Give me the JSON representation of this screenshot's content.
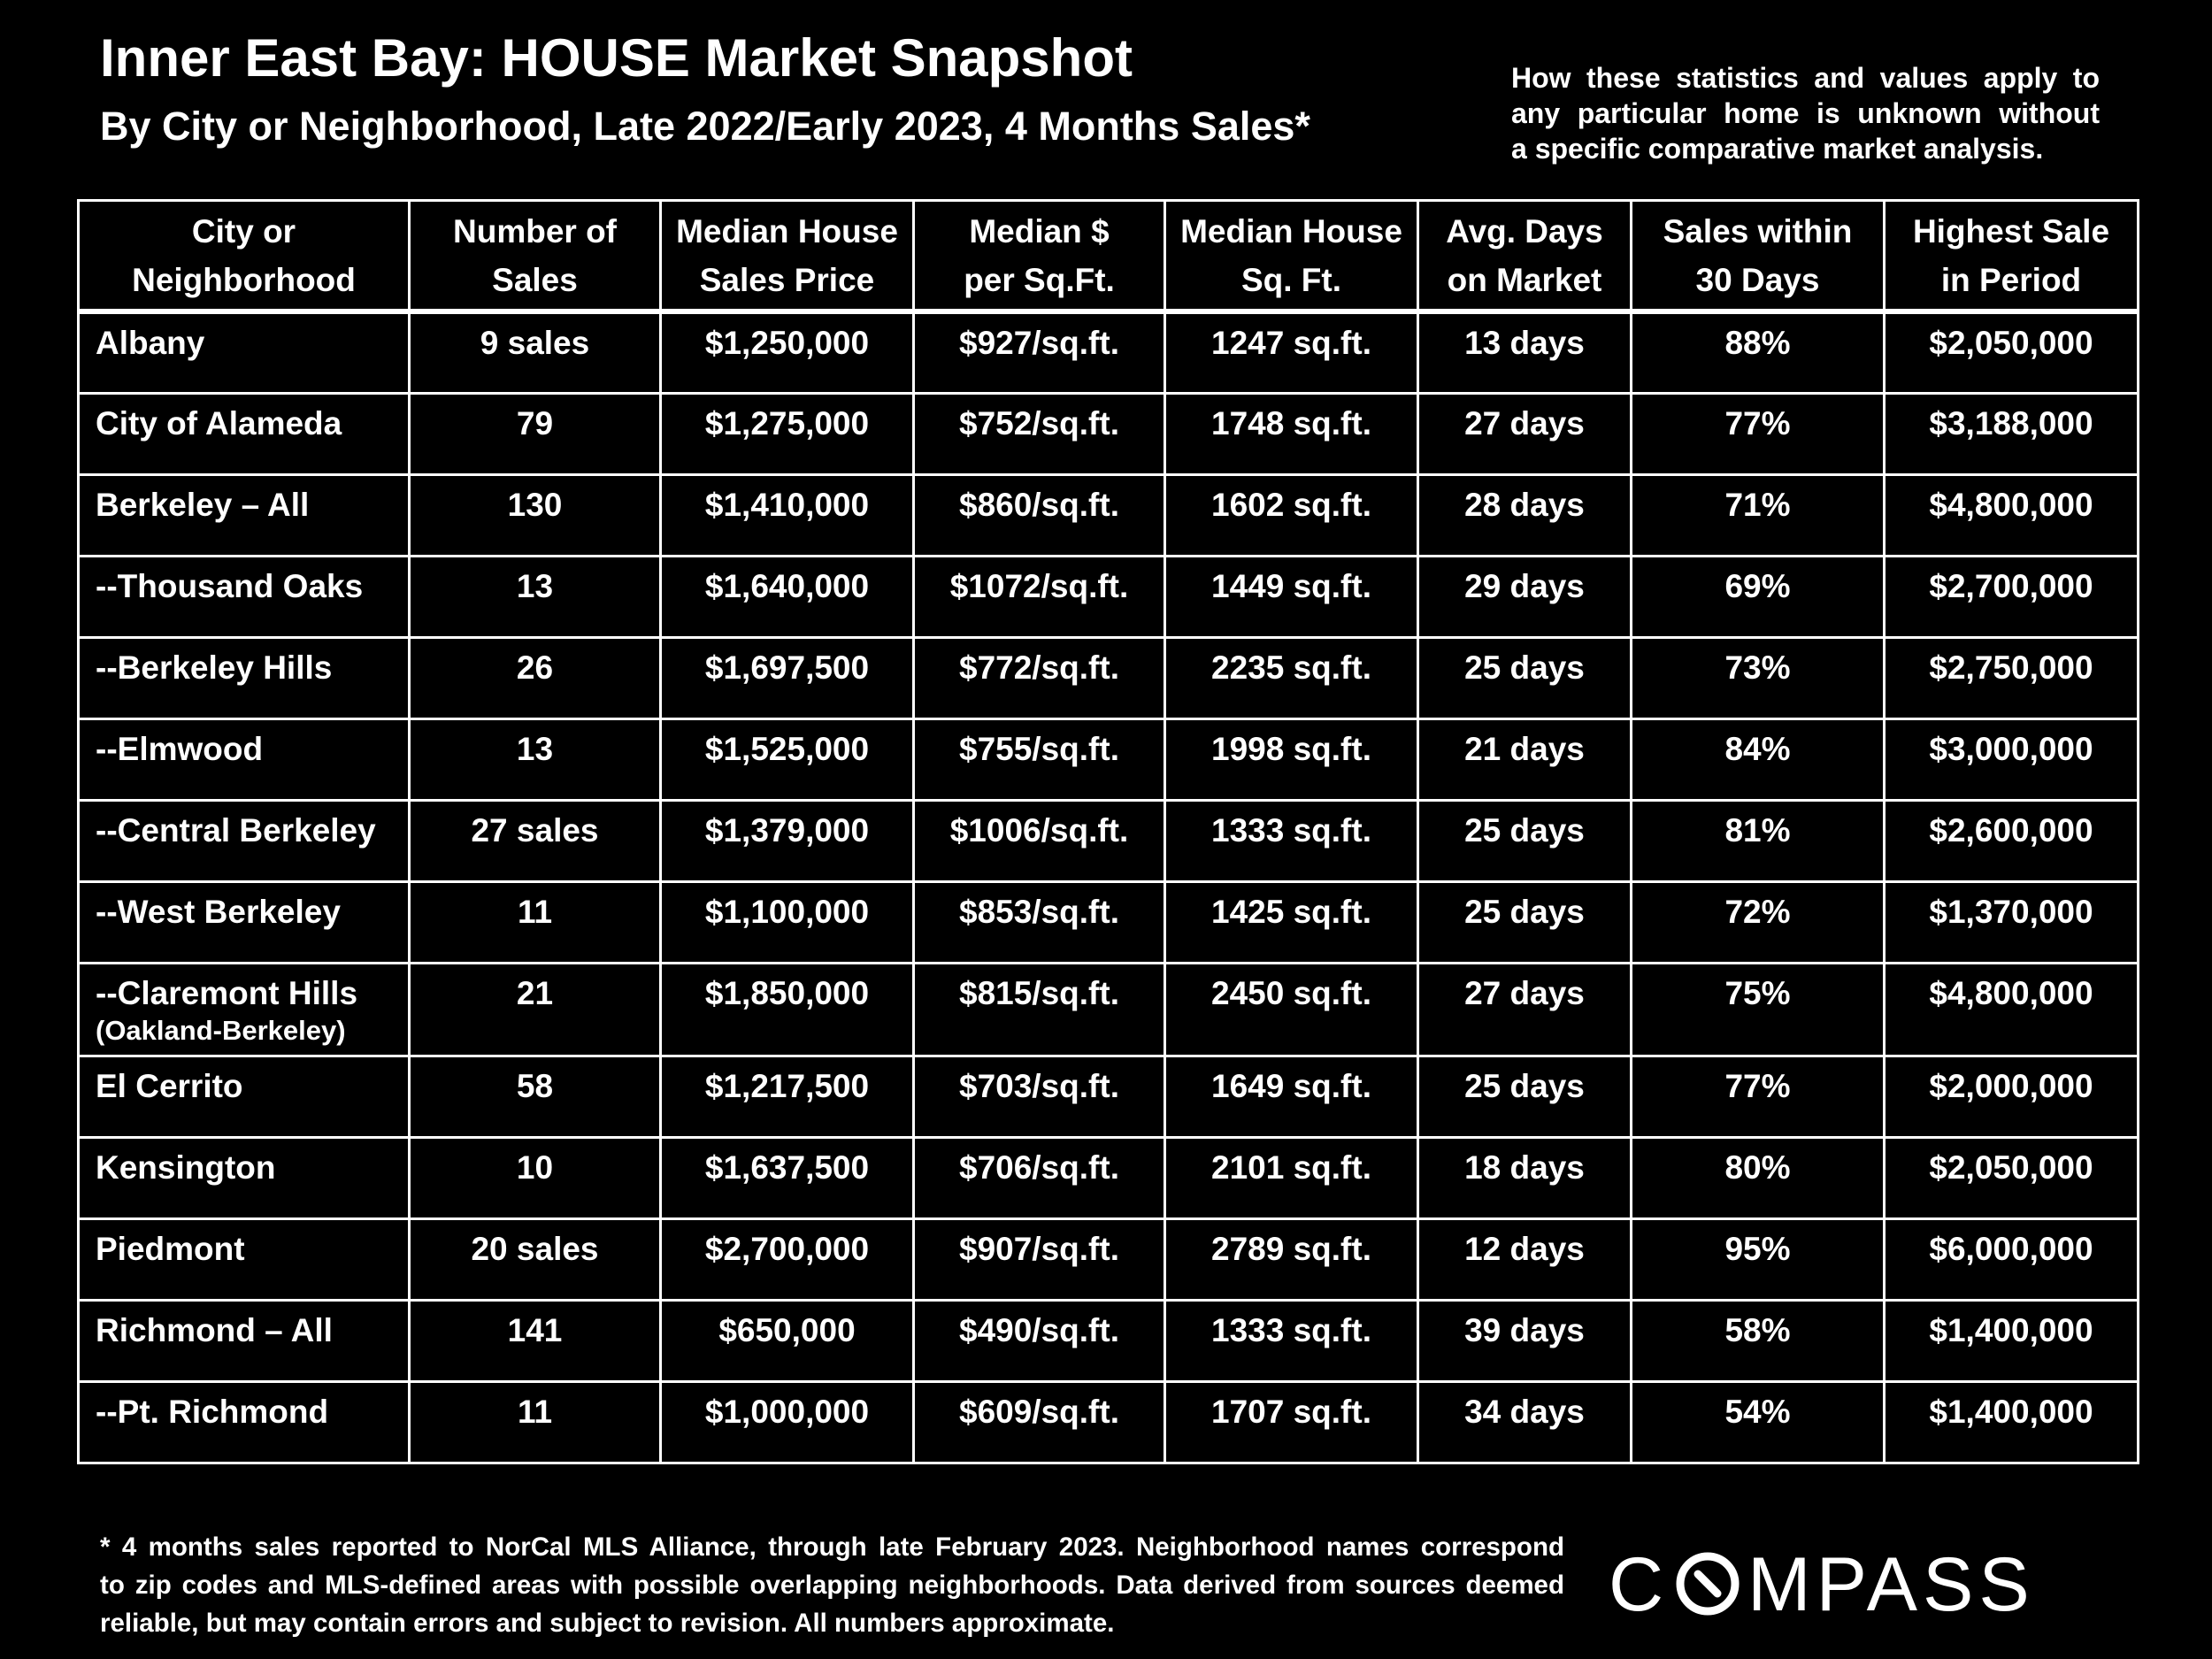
{
  "header": {
    "title": "Inner East Bay: HOUSE Market Snapshot",
    "subtitle": "By City or Neighborhood, Late 2022/Early 2023, 4 Months Sales*",
    "disclaimer_lines": [
      "How these statistics and values apply to",
      "any particular home is unknown without",
      "a specific comparative market analysis."
    ]
  },
  "table": {
    "columns": [
      [
        "City or",
        "Neighborhood"
      ],
      [
        "Number of",
        "Sales"
      ],
      [
        "Median House",
        "Sales Price"
      ],
      [
        "Median $",
        "per Sq.Ft."
      ],
      [
        "Median House",
        "Sq. Ft."
      ],
      [
        "Avg. Days",
        "on Market"
      ],
      [
        "Sales within",
        "30 Days"
      ],
      [
        "Highest Sale",
        "in Period"
      ]
    ],
    "rows": [
      {
        "name": "Albany",
        "sub": "",
        "sales": "9 sales",
        "price": "$1,250,000",
        "ppsf": "$927/sq.ft.",
        "sqft": "1247 sq.ft.",
        "dom": "13 days",
        "within30": "88%",
        "highest": "$2,050,000"
      },
      {
        "name": "City of Alameda",
        "sub": "",
        "sales": "79",
        "price": "$1,275,000",
        "ppsf": "$752/sq.ft.",
        "sqft": "1748 sq.ft.",
        "dom": "27 days",
        "within30": "77%",
        "highest": "$3,188,000"
      },
      {
        "name": "Berkeley – All",
        "sub": "",
        "sales": "130",
        "price": "$1,410,000",
        "ppsf": "$860/sq.ft.",
        "sqft": "1602 sq.ft.",
        "dom": "28 days",
        "within30": "71%",
        "highest": "$4,800,000"
      },
      {
        "name": "--Thousand Oaks",
        "sub": "",
        "sales": "13",
        "price": "$1,640,000",
        "ppsf": "$1072/sq.ft.",
        "sqft": "1449 sq.ft.",
        "dom": "29 days",
        "within30": "69%",
        "highest": "$2,700,000"
      },
      {
        "name": "--Berkeley Hills",
        "sub": "",
        "sales": "26",
        "price": "$1,697,500",
        "ppsf": "$772/sq.ft.",
        "sqft": "2235 sq.ft.",
        "dom": "25 days",
        "within30": "73%",
        "highest": "$2,750,000"
      },
      {
        "name": "--Elmwood",
        "sub": "",
        "sales": "13",
        "price": "$1,525,000",
        "ppsf": "$755/sq.ft.",
        "sqft": "1998 sq.ft.",
        "dom": "21 days",
        "within30": "84%",
        "highest": "$3,000,000"
      },
      {
        "name": "--Central Berkeley",
        "sub": "",
        "sales": "27 sales",
        "price": "$1,379,000",
        "ppsf": "$1006/sq.ft.",
        "sqft": "1333 sq.ft.",
        "dom": "25 days",
        "within30": "81%",
        "highest": "$2,600,000"
      },
      {
        "name": "--West Berkeley",
        "sub": "",
        "sales": "11",
        "price": "$1,100,000",
        "ppsf": "$853/sq.ft.",
        "sqft": "1425 sq.ft.",
        "dom": "25 days",
        "within30": "72%",
        "highest": "$1,370,000"
      },
      {
        "name": "--Claremont Hills",
        "sub": "(Oakland-Berkeley)",
        "sales": "21",
        "price": "$1,850,000",
        "ppsf": "$815/sq.ft.",
        "sqft": "2450 sq.ft.",
        "dom": "27 days",
        "within30": "75%",
        "highest": "$4,800,000"
      },
      {
        "name": "El Cerrito",
        "sub": "",
        "sales": "58",
        "price": "$1,217,500",
        "ppsf": "$703/sq.ft.",
        "sqft": "1649 sq.ft.",
        "dom": "25 days",
        "within30": "77%",
        "highest": "$2,000,000"
      },
      {
        "name": "Kensington",
        "sub": "",
        "sales": "10",
        "price": "$1,637,500",
        "ppsf": "$706/sq.ft.",
        "sqft": "2101 sq.ft.",
        "dom": "18 days",
        "within30": "80%",
        "highest": "$2,050,000"
      },
      {
        "name": "Piedmont",
        "sub": "",
        "sales": "20 sales",
        "price": "$2,700,000",
        "ppsf": "$907/sq.ft.",
        "sqft": "2789 sq.ft.",
        "dom": "12 days",
        "within30": "95%",
        "highest": "$6,000,000"
      },
      {
        "name": "Richmond – All",
        "sub": "",
        "sales": "141",
        "price": "$650,000",
        "ppsf": "$490/sq.ft.",
        "sqft": "1333 sq.ft.",
        "dom": "39 days",
        "within30": "58%",
        "highest": "$1,400,000"
      },
      {
        "name": "--Pt. Richmond",
        "sub": "",
        "sales": "11",
        "price": "$1,000,000",
        "ppsf": "$609/sq.ft.",
        "sqft": "1707 sq.ft.",
        "dom": "34 days",
        "within30": "54%",
        "highest": "$1,400,000"
      }
    ]
  },
  "footnote_lines": [
    "* 4 months sales reported to NorCal MLS Alliance, through late February 2023. Neighborhood names correspond",
    "to zip codes and MLS-defined areas with possible overlapping neighborhoods. Data derived from sources deemed",
    "reliable, but may contain errors and subject to revision. All numbers approximate."
  ],
  "logo": {
    "text_before": "C",
    "text_after": "MPASS",
    "icon": "compass-o-icon"
  },
  "colors": {
    "background": "#000000",
    "text": "#ffffff"
  }
}
